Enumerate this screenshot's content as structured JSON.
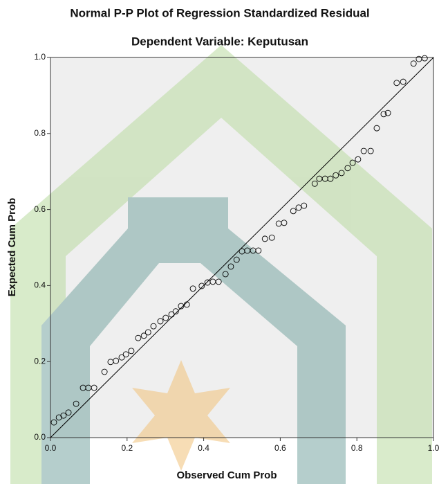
{
  "chart_data": {
    "type": "scatter",
    "title": "Normal P-P Plot of Regression Standardized Residual",
    "subtitle": "Dependent Variable: Keputusan",
    "x_label": "Observed Cum Prob",
    "y_label": "Expected Cum Prob",
    "x": [
      0.009,
      0.022,
      0.034,
      0.047,
      0.067,
      0.085,
      0.099,
      0.114,
      0.141,
      0.157,
      0.171,
      0.186,
      0.197,
      0.211,
      0.229,
      0.244,
      0.255,
      0.269,
      0.287,
      0.301,
      0.316,
      0.327,
      0.341,
      0.356,
      0.372,
      0.395,
      0.41,
      0.424,
      0.439,
      0.457,
      0.471,
      0.486,
      0.5,
      0.514,
      0.529,
      0.543,
      0.56,
      0.578,
      0.596,
      0.61,
      0.634,
      0.648,
      0.662,
      0.69,
      0.702,
      0.717,
      0.731,
      0.745,
      0.76,
      0.776,
      0.789,
      0.803,
      0.818,
      0.836,
      0.852,
      0.87,
      0.881,
      0.904,
      0.921,
      0.948,
      0.962,
      0.977
    ],
    "y": [
      0.04,
      0.053,
      0.058,
      0.066,
      0.089,
      0.131,
      0.131,
      0.131,
      0.173,
      0.199,
      0.202,
      0.211,
      0.219,
      0.228,
      0.262,
      0.268,
      0.277,
      0.293,
      0.306,
      0.315,
      0.324,
      0.332,
      0.346,
      0.35,
      0.392,
      0.399,
      0.408,
      0.41,
      0.41,
      0.43,
      0.45,
      0.468,
      0.49,
      0.492,
      0.492,
      0.492,
      0.523,
      0.526,
      0.563,
      0.565,
      0.596,
      0.605,
      0.61,
      0.668,
      0.681,
      0.681,
      0.681,
      0.69,
      0.696,
      0.709,
      0.723,
      0.732,
      0.754,
      0.754,
      0.814,
      0.851,
      0.854,
      0.933,
      0.936,
      0.984,
      0.996,
      0.998
    ],
    "color": "#000000",
    "xlim": [
      0,
      1
    ],
    "ylim": [
      0,
      1
    ],
    "xticks": [
      {
        "value": 0,
        "label": "0.0"
      },
      {
        "value": 0.2,
        "label": "0.2"
      },
      {
        "value": 0.4,
        "label": "0.4"
      },
      {
        "value": 0.6,
        "label": "0.6"
      },
      {
        "value": 0.8,
        "label": "0.8"
      },
      {
        "value": 1,
        "label": "1.0"
      }
    ],
    "yticks": [
      {
        "value": 0,
        "label": "0.0"
      },
      {
        "value": 0.2,
        "label": "0.2"
      },
      {
        "value": 0.4,
        "label": "0.4"
      },
      {
        "value": 0.6,
        "label": "0.6"
      },
      {
        "value": 0.8,
        "label": "0.8"
      },
      {
        "value": 1,
        "label": "1.0"
      }
    ],
    "reference_line": true
  }
}
